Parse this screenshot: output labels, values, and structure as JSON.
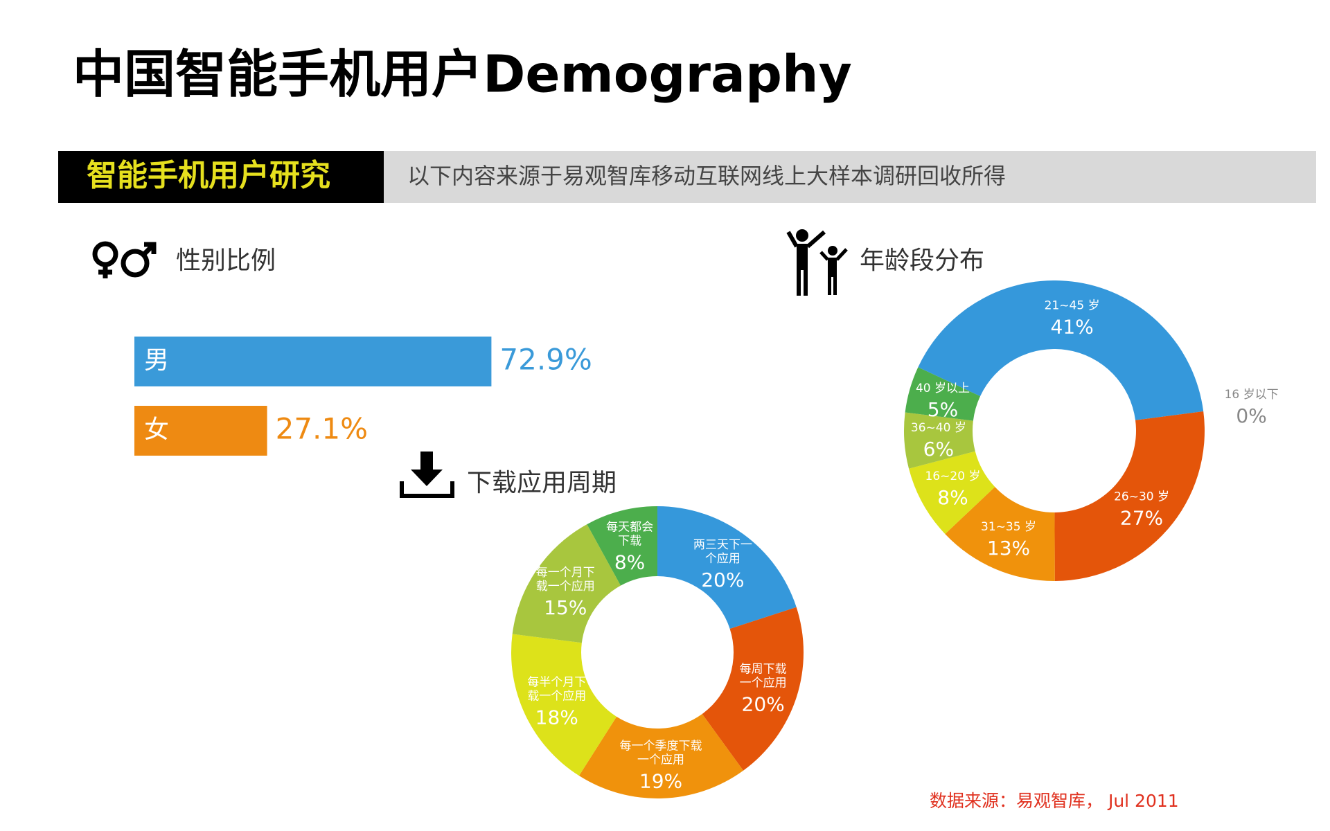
{
  "title": "中国智能手机用户Demography",
  "banner": {
    "label": "智能手机用户研究",
    "text": "以下内容来源于易观智库移动互联网线上大样本调研回收所得"
  },
  "source": "数据来源：易观智库， Jul 2011",
  "chart_data": [
    {
      "type": "bar",
      "title": "性别比例",
      "categories": [
        "男",
        "女"
      ],
      "values": [
        72.9,
        27.1
      ],
      "value_labels": [
        "72.9%",
        "27.1%"
      ],
      "colors": [
        "#3a9ad9",
        "#ee8a12"
      ]
    },
    {
      "type": "donut",
      "title": "年龄段分布",
      "categories": [
        [
          "21~45 岁"
        ],
        [
          "16 岁以下"
        ],
        [
          "26~30 岁"
        ],
        [
          "31~35 岁"
        ],
        [
          "16~20 岁"
        ],
        [
          "36~40 岁"
        ],
        [
          "40 岁以上"
        ]
      ],
      "values": [
        41,
        0,
        27,
        13,
        8,
        6,
        5
      ],
      "value_labels": [
        "41%",
        "0%",
        "27%",
        "13%",
        "8%",
        "6%",
        "5%"
      ],
      "colors": [
        "#3598db",
        "#999999",
        "#e4550a",
        "#f0920c",
        "#dde21a",
        "#a8c63e",
        "#4cae4c"
      ]
    },
    {
      "type": "donut",
      "title": "下载应用周期",
      "categories": [
        [
          "两三天下一",
          "个应用"
        ],
        [
          "每周下载",
          "一个应用"
        ],
        [
          "每一个季度下载",
          "一个应用"
        ],
        [
          "每半个月下",
          "载一个应用"
        ],
        [
          "每一个月下",
          "载一个应用"
        ],
        [
          "每天都会",
          "下载"
        ]
      ],
      "values": [
        20,
        20,
        19,
        18,
        15,
        8
      ],
      "value_labels": [
        "20%",
        "20%",
        "19%",
        "18%",
        "15%",
        "8%"
      ],
      "colors": [
        "#3598db",
        "#e4550a",
        "#f0920c",
        "#dde21a",
        "#a8c63e",
        "#4cae4c"
      ]
    }
  ]
}
